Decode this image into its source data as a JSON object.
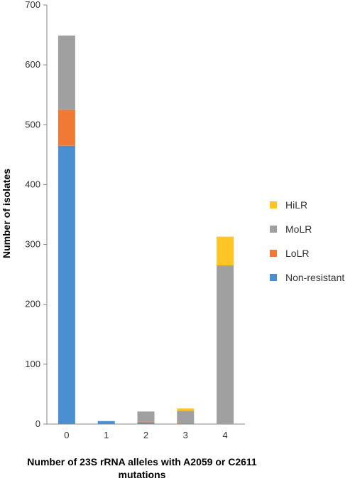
{
  "chart_data": {
    "type": "bar",
    "stacked": true,
    "categories": [
      "0",
      "1",
      "2",
      "3",
      "4"
    ],
    "series": [
      {
        "name": "Non-resistant",
        "color": "#4A90D0",
        "values": [
          465,
          5,
          2,
          1,
          0
        ]
      },
      {
        "name": "LoLR",
        "color": "#F07A35",
        "values": [
          60,
          0,
          2,
          0,
          0
        ]
      },
      {
        "name": "MoLR",
        "color": "#A0A0A0",
        "values": [
          124,
          0,
          17,
          21,
          265
        ]
      },
      {
        "name": "HiLR",
        "color": "#FFC425",
        "values": [
          0,
          0,
          0,
          4,
          48
        ]
      }
    ],
    "legend_order": [
      "HiLR",
      "MoLR",
      "LoLR",
      "Non-resistant"
    ],
    "ylim": [
      0,
      700
    ],
    "yticks": [
      0,
      100,
      200,
      300,
      400,
      500,
      600,
      700
    ],
    "ylabel": "Number of isolates",
    "xlabel_lines": [
      "Number of 23S rRNA alleles with A2059 or C2611",
      "mutations"
    ],
    "grid": false,
    "legend_position": "right"
  }
}
